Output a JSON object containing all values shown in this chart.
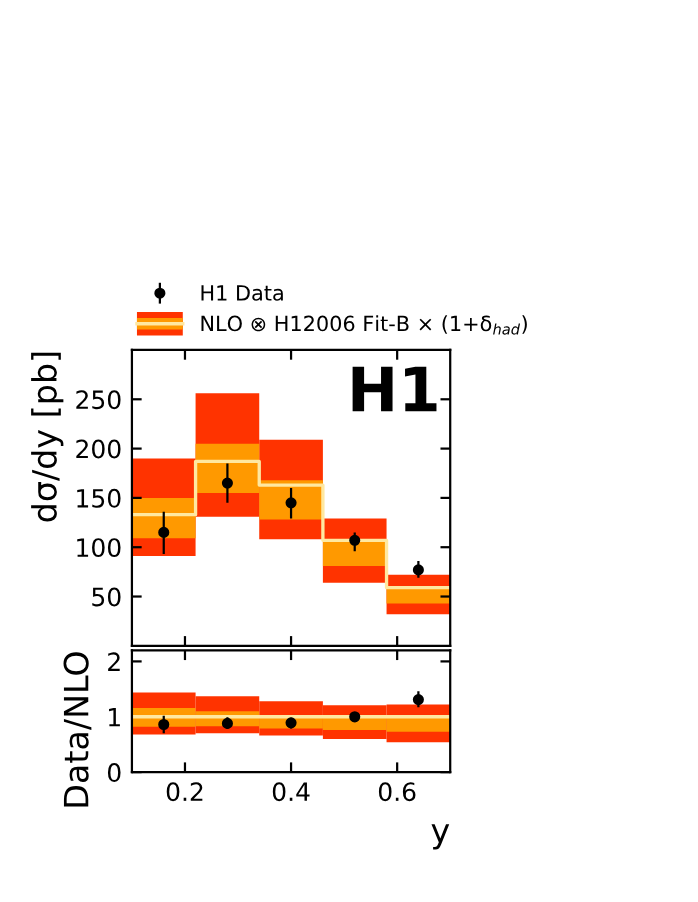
{
  "chart_data": [
    {
      "type": "bar",
      "ylabel": "dσ/dy [pb]",
      "x": [
        0.16,
        0.28,
        0.4,
        0.52,
        0.64
      ],
      "xlim": [
        0.1,
        0.7
      ],
      "xticks": [
        {
          "value": 0.2,
          "label": null
        },
        {
          "value": 0.4,
          "label": null
        },
        {
          "value": 0.6,
          "label": null
        }
      ],
      "ylim": [
        0,
        300
      ],
      "yticks": [
        50,
        100,
        150,
        200,
        250
      ],
      "tick_labels": "y",
      "legend": "top",
      "annotations": [
        "H1"
      ],
      "series": [
        {
          "name": "NLO ⊗ H12006 Fit-B × (1+δ$_{had}$)",
          "color": "#ff3300",
          "base": [
            91,
            131,
            108,
            64,
            32
          ],
          "values": [
            99,
            125,
            101,
            65,
            40
          ]
        },
        {
          "color": "#ff9900",
          "base": [
            109,
            155,
            128,
            81,
            43
          ],
          "values": [
            41,
            50,
            40,
            27,
            17
          ]
        },
        {
          "type": "step",
          "color": "#ffe8a0",
          "x": [
            0.1,
            0.22,
            0.34,
            0.46,
            0.58,
            0.7
          ],
          "values": [
            133,
            187,
            163,
            107,
            59,
            59
          ]
        },
        {
          "name": "H1 Data",
          "type": "scatter",
          "marker": "circle",
          "color": "#000000",
          "values": [
            115,
            165,
            145,
            107,
            77
          ],
          "errors": [
            [
              93,
              136
            ],
            [
              145,
              185
            ],
            [
              129,
              160
            ],
            [
              96,
              115
            ],
            [
              69,
              86
            ]
          ]
        }
      ]
    },
    {
      "type": "bar",
      "ylabel": "Data/NLO",
      "xlabel": "y",
      "x": [
        0.16,
        0.28,
        0.4,
        0.52,
        0.64
      ],
      "xlim": [
        0.1,
        0.7
      ],
      "xticks": [
        0.2,
        0.4,
        0.6
      ],
      "ylim": [
        0,
        2.2
      ],
      "yticks": [
        0,
        1,
        2
      ],
      "series": [
        {
          "color": "#ff3300",
          "base": [
            0.68,
            0.7,
            0.66,
            0.6,
            0.54
          ],
          "values": [
            0.76,
            0.67,
            0.62,
            0.61,
            0.68
          ]
        },
        {
          "color": "#ff9900",
          "base": [
            0.82,
            0.83,
            0.79,
            0.76,
            0.73
          ],
          "values": [
            0.34,
            0.27,
            0.24,
            0.25,
            0.29
          ]
        },
        {
          "type": "step",
          "color": "#ffe8a0",
          "x": [
            0.1,
            0.22,
            0.34,
            0.46,
            0.58,
            0.7
          ],
          "values": [
            1,
            1,
            1,
            1,
            1,
            1
          ]
        },
        {
          "type": "scatter",
          "marker": "circle",
          "color": "#000000",
          "values": [
            0.86,
            0.88,
            0.89,
            1.0,
            1.31
          ],
          "errors": [
            [
              0.7,
              1.02
            ],
            [
              0.78,
              0.99
            ],
            [
              0.79,
              0.98
            ],
            [
              0.9,
              1.07
            ],
            [
              1.17,
              1.46
            ]
          ]
        }
      ]
    }
  ]
}
